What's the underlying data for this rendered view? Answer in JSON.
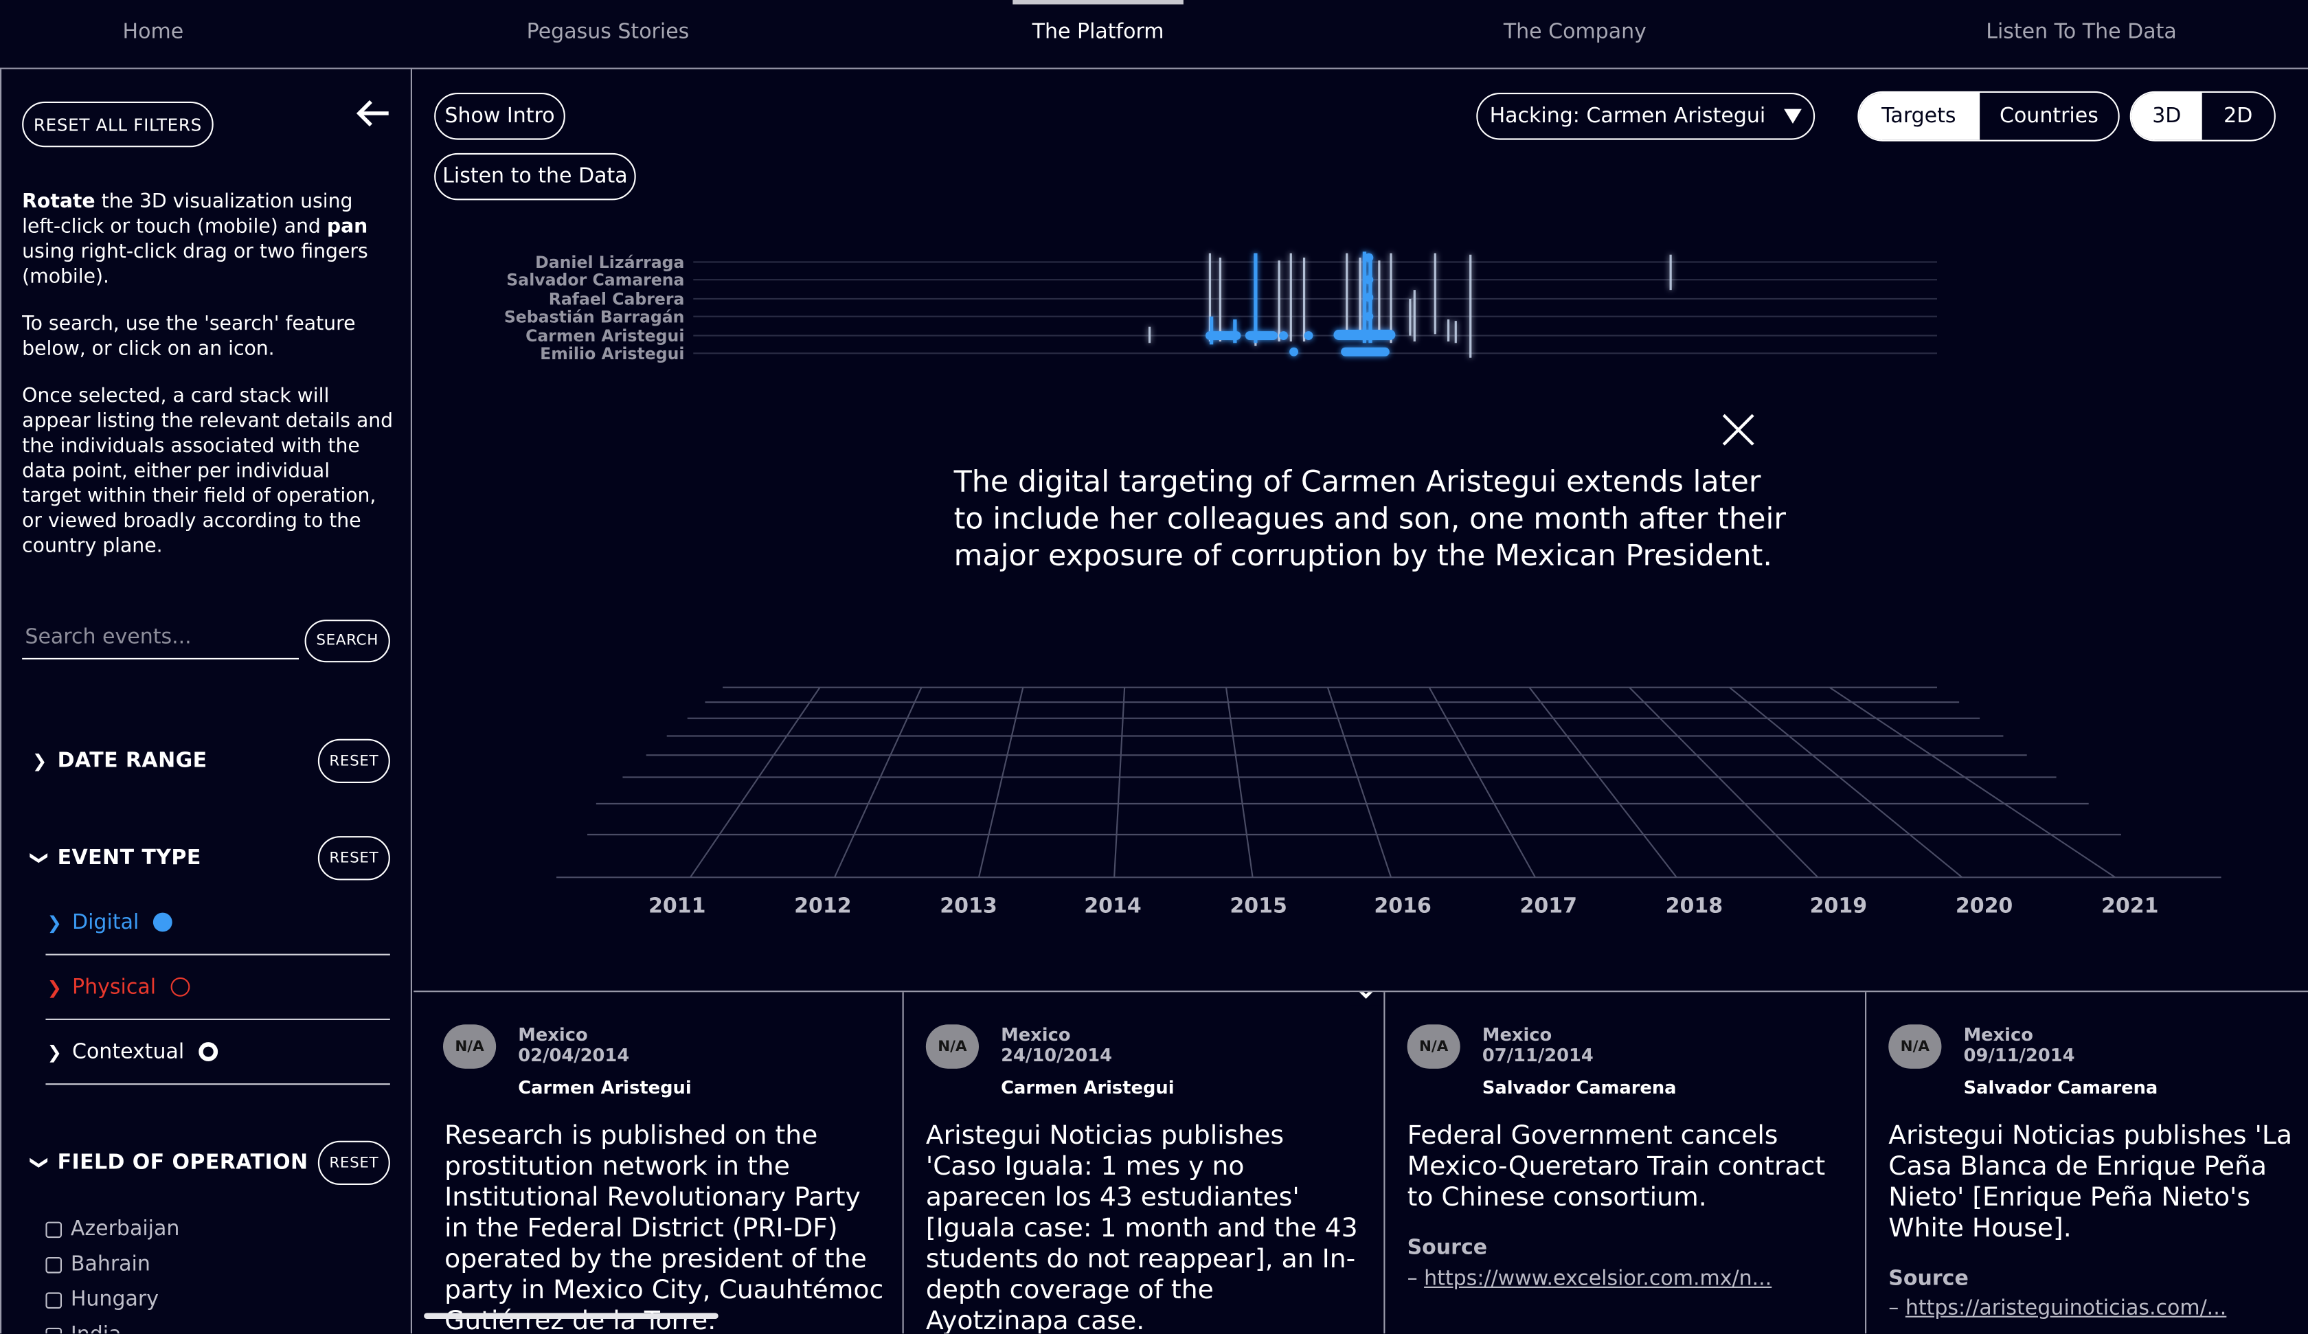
{
  "nav": {
    "items": [
      {
        "label": "Home",
        "active": false
      },
      {
        "label": "Pegasus Stories",
        "active": false
      },
      {
        "label": "The Platform",
        "active": true
      },
      {
        "label": "The Company",
        "active": false
      },
      {
        "label": "Listen To The Data",
        "active": false
      }
    ]
  },
  "sidebar": {
    "reset_all_label": "RESET ALL FILTERS",
    "instructions": {
      "p1_bold1": "Rotate",
      "p1_text1": " the 3D visualization using left-click or touch (mobile) and ",
      "p1_bold2": "pan",
      "p1_text2": " using right-click drag or two fingers (mobile).",
      "p2": "To search, use the 'search' feature below, or click on an icon.",
      "p3": "Once selected, a card stack will appear listing the relevant details and the individuals associated with the data point, either per individual target within their field of operation, or viewed broadly according to the country plane."
    },
    "search": {
      "placeholder": "Search events...",
      "value": "",
      "button_label": "SEARCH"
    },
    "date_range": {
      "label": "DATE RANGE",
      "reset_label": "RESET"
    },
    "event_type": {
      "label": "EVENT TYPE",
      "reset_label": "RESET",
      "items": [
        {
          "label": "Digital",
          "color": "#3b9bf5"
        },
        {
          "label": "Physical",
          "color": "#e8382c"
        },
        {
          "label": "Contextual",
          "color": "#ffffff"
        }
      ]
    },
    "field_of_operation": {
      "label": "FIELD OF OPERATION",
      "reset_label": "RESET",
      "countries": [
        "Azerbaijan",
        "Bahrain",
        "Hungary",
        "India"
      ]
    }
  },
  "main": {
    "show_intro_label": "Show Intro",
    "listen_label": "Listen to the Data",
    "select_value": "Hacking: Carmen Aristegui",
    "view_toggle": {
      "targets": "Targets",
      "countries": "Countries",
      "selected": "Targets"
    },
    "dim_toggle": {
      "d3": "3D",
      "d2": "2D",
      "selected": "3D"
    },
    "target_names": [
      "Daniel Lizárraga",
      "Salvador Camarena",
      "Rafael Cabrera",
      "Sebastián Barragán",
      "Carmen Aristegui",
      "Emilio Aristegui"
    ],
    "overlay_text": "The digital targeting of Carmen Aristegui extends later to include her colleagues and son, one month after their major exposure of corruption by the Mexican President.",
    "years": [
      "2011",
      "2012",
      "2013",
      "2014",
      "2015",
      "2016",
      "2017",
      "2018",
      "2019",
      "2020",
      "2021"
    ]
  },
  "cards": [
    {
      "badge": "N/A",
      "country": "Mexico",
      "date": "02/04/2014",
      "person": "Carmen Aristegui",
      "description": "Research is published on the prostitution network in the Institutional Revolutionary Party in the Federal District (PRI-DF) operated by the president of the party in Mexico City, Cuauhtémoc Gutiérrez de la Torre.",
      "source_label": "",
      "source_link": ""
    },
    {
      "badge": "N/A",
      "country": "Mexico",
      "date": "24/10/2014",
      "person": "Carmen Aristegui",
      "description": "Aristegui Noticias publishes 'Caso Iguala: 1 mes y no aparecen los 43 estudiantes' [Iguala case: 1 month and the 43 students do not reappear], an In-depth coverage of the Ayotzinapa case.",
      "source_label": "",
      "source_link": ""
    },
    {
      "badge": "N/A",
      "country": "Mexico",
      "date": "07/11/2014",
      "person": "Salvador Camarena",
      "description": "Federal Government cancels Mexico-Queretaro Train contract to Chinese consortium.",
      "source_label": "Source",
      "source_link": "https://www.excelsior.com.mx/n..."
    },
    {
      "badge": "N/A",
      "country": "Mexico",
      "date": "09/11/2014",
      "person": "Salvador Camarena",
      "description": "Aristegui Noticias publishes 'La Casa Blanca de Enrique Peña Nieto' [Enrique Peña Nieto's White House].",
      "source_label": "Source",
      "source_link": "https://aristeguinoticias.com/..."
    }
  ]
}
